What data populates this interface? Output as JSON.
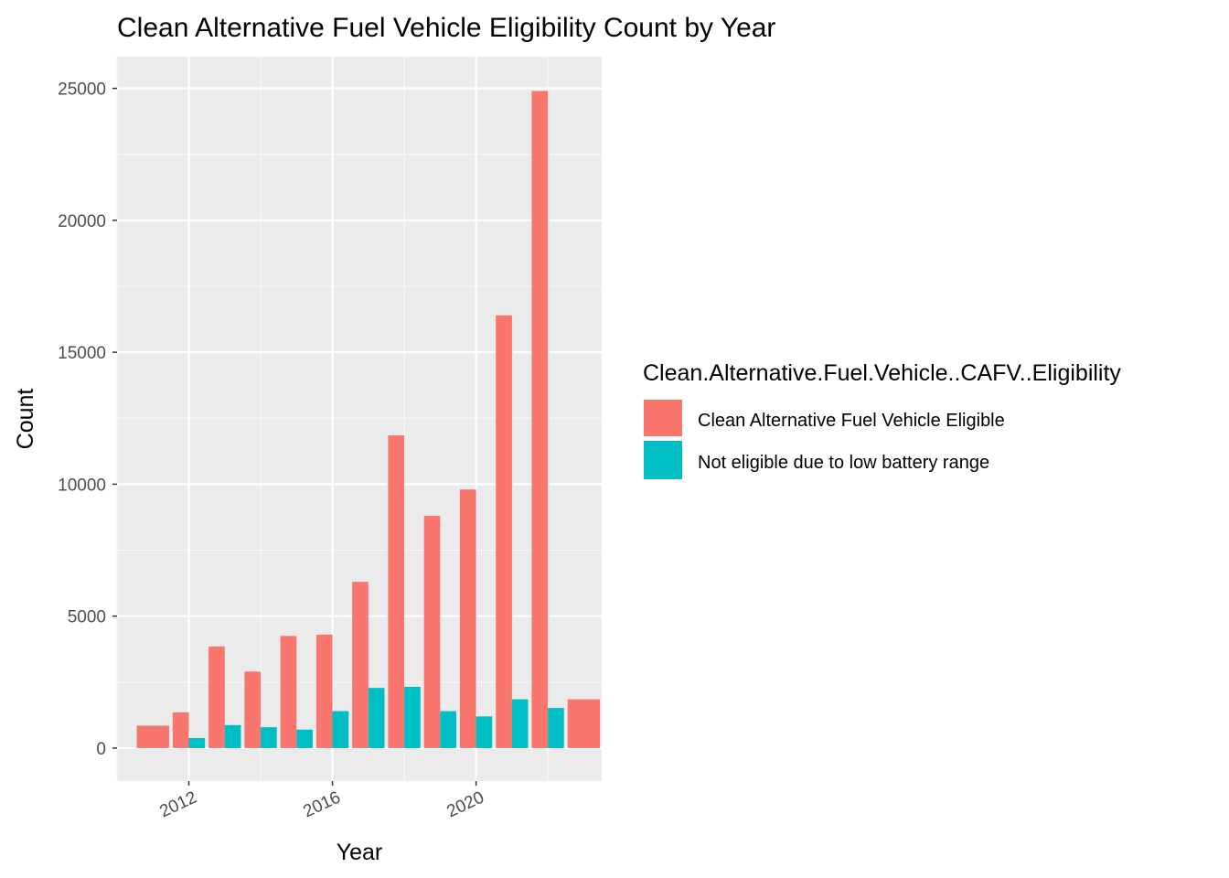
{
  "chart_data": {
    "type": "bar",
    "title": "Clean Alternative Fuel Vehicle Eligibility Count by Year",
    "xlabel": "Year",
    "ylabel": "Count",
    "legend_title": "Clean.Alternative.Fuel.Vehicle..CAFV..Eligibility",
    "legend_position": "right",
    "grid": true,
    "xlim": [
      2010,
      2023.5
    ],
    "ylim": [
      -1250,
      26200
    ],
    "x_ticks": [
      2012,
      2016,
      2020
    ],
    "y_ticks": [
      0,
      5000,
      10000,
      15000,
      20000,
      25000
    ],
    "series": [
      {
        "name": "Clean Alternative Fuel Vehicle Eligible",
        "color": "#F8766D",
        "points": [
          {
            "year": 2011,
            "value": 850,
            "full_width": true
          },
          {
            "year": 2012,
            "value": 1350
          },
          {
            "year": 2013,
            "value": 3850
          },
          {
            "year": 2014,
            "value": 2900
          },
          {
            "year": 2015,
            "value": 4250
          },
          {
            "year": 2016,
            "value": 4300
          },
          {
            "year": 2017,
            "value": 6300
          },
          {
            "year": 2018,
            "value": 11850
          },
          {
            "year": 2019,
            "value": 8800
          },
          {
            "year": 2020,
            "value": 9800
          },
          {
            "year": 2021,
            "value": 16400
          },
          {
            "year": 2022,
            "value": 24900
          },
          {
            "year": 2023,
            "value": 1850,
            "full_width": true
          }
        ]
      },
      {
        "name": "Not eligible due to low battery range",
        "color": "#00BFC4",
        "points": [
          {
            "year": 2012,
            "value": 380
          },
          {
            "year": 2013,
            "value": 870
          },
          {
            "year": 2014,
            "value": 790
          },
          {
            "year": 2015,
            "value": 700
          },
          {
            "year": 2016,
            "value": 1400
          },
          {
            "year": 2017,
            "value": 2280
          },
          {
            "year": 2018,
            "value": 2320
          },
          {
            "year": 2019,
            "value": 1400
          },
          {
            "year": 2020,
            "value": 1200
          },
          {
            "year": 2021,
            "value": 1850
          },
          {
            "year": 2022,
            "value": 1520
          }
        ]
      }
    ]
  }
}
